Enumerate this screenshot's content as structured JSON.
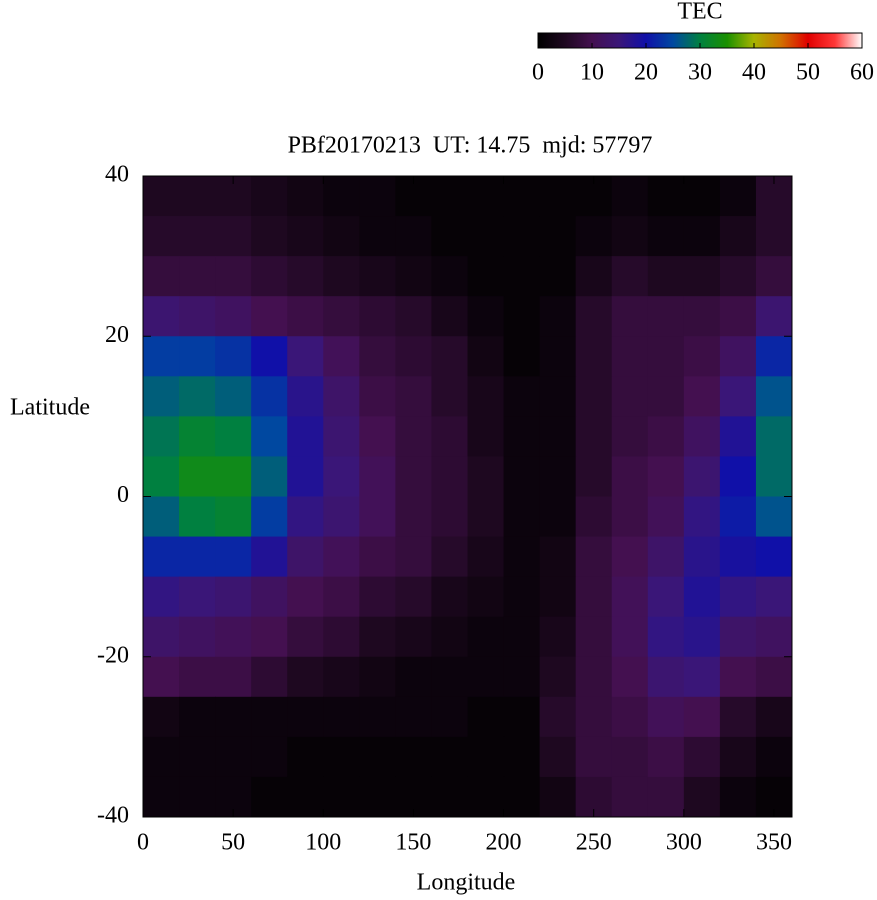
{
  "chart_data": {
    "type": "heatmap",
    "title": "PBf20170213  UT: 14.75  mjd: 57797",
    "x_label": "Longitude",
    "y_label": "Latitude",
    "colorbar_label": "TEC",
    "xlim": [
      0,
      360
    ],
    "ylim": [
      -40,
      40
    ],
    "xticks": [
      0,
      50,
      100,
      150,
      200,
      250,
      300,
      350
    ],
    "yticks": [
      -40,
      -20,
      0,
      20,
      40
    ],
    "clim": [
      0,
      60
    ],
    "cticks": [
      0,
      10,
      20,
      30,
      40,
      50,
      60
    ],
    "colormap": [
      "#000000",
      "#1e0820",
      "#441050",
      "#3a1678",
      "#1010a8",
      "#0048a0",
      "#008040",
      "#1a9000",
      "#a8b400",
      "#d07000",
      "#e00000",
      "#ff3838",
      "#ffffff"
    ],
    "x": [
      10,
      30,
      50,
      70,
      90,
      110,
      130,
      150,
      170,
      190,
      210,
      230,
      250,
      270,
      290,
      310,
      330,
      350
    ],
    "y": [
      37.5,
      32.5,
      27.5,
      22.5,
      17.5,
      12.5,
      7.5,
      2.5,
      -2.5,
      -7.5,
      -12.5,
      -17.5,
      -22.5,
      -27.5,
      -32.5,
      -37.5
    ],
    "z": [
      [
        5,
        5,
        5,
        4,
        3,
        2,
        2,
        1,
        1,
        1,
        1,
        1,
        1,
        2,
        1,
        1,
        2,
        6
      ],
      [
        6,
        6,
        6,
        5,
        4,
        3,
        2,
        2,
        1,
        1,
        1,
        1,
        2,
        3,
        2,
        2,
        4,
        6
      ],
      [
        8,
        8,
        8,
        7,
        6,
        5,
        4,
        3,
        2,
        1,
        1,
        1,
        4,
        6,
        5,
        5,
        6,
        8
      ],
      [
        14,
        13,
        12,
        10,
        9,
        8,
        7,
        6,
        4,
        2,
        1,
        2,
        6,
        8,
        8,
        8,
        9,
        14
      ],
      [
        24,
        24,
        23,
        20,
        15,
        11,
        8,
        7,
        6,
        3,
        1,
        2,
        6,
        8,
        8,
        9,
        12,
        22
      ],
      [
        27,
        28,
        27,
        23,
        17,
        13,
        9,
        8,
        6,
        4,
        2,
        2,
        6,
        8,
        8,
        10,
        15,
        26
      ],
      [
        29,
        31,
        30,
        25,
        18,
        14,
        10,
        8,
        7,
        4,
        2,
        2,
        6,
        8,
        9,
        12,
        18,
        28
      ],
      [
        30,
        33,
        33,
        27,
        18,
        15,
        11,
        8,
        7,
        5,
        2,
        2,
        6,
        9,
        10,
        14,
        20,
        28
      ],
      [
        27,
        30,
        31,
        24,
        16,
        14,
        11,
        8,
        7,
        5,
        2,
        2,
        7,
        9,
        11,
        16,
        21,
        26
      ],
      [
        22,
        22,
        22,
        18,
        13,
        11,
        9,
        8,
        6,
        4,
        2,
        3,
        8,
        10,
        13,
        17,
        19,
        20
      ],
      [
        16,
        15,
        14,
        12,
        10,
        9,
        7,
        6,
        4,
        3,
        2,
        3,
        8,
        11,
        15,
        18,
        16,
        15
      ],
      [
        13,
        12,
        11,
        10,
        8,
        7,
        5,
        4,
        3,
        2,
        2,
        4,
        8,
        11,
        16,
        17,
        13,
        12
      ],
      [
        10,
        9,
        9,
        7,
        5,
        4,
        3,
        2,
        2,
        2,
        2,
        5,
        8,
        10,
        14,
        15,
        10,
        9
      ],
      [
        3,
        2,
        2,
        2,
        2,
        2,
        2,
        2,
        2,
        1,
        1,
        6,
        8,
        9,
        11,
        10,
        6,
        4
      ],
      [
        2,
        2,
        2,
        2,
        1,
        1,
        1,
        1,
        1,
        1,
        1,
        5,
        8,
        8,
        9,
        7,
        4,
        2
      ],
      [
        2,
        2,
        2,
        1,
        1,
        1,
        1,
        1,
        1,
        1,
        1,
        3,
        7,
        8,
        8,
        5,
        2,
        1
      ]
    ]
  }
}
